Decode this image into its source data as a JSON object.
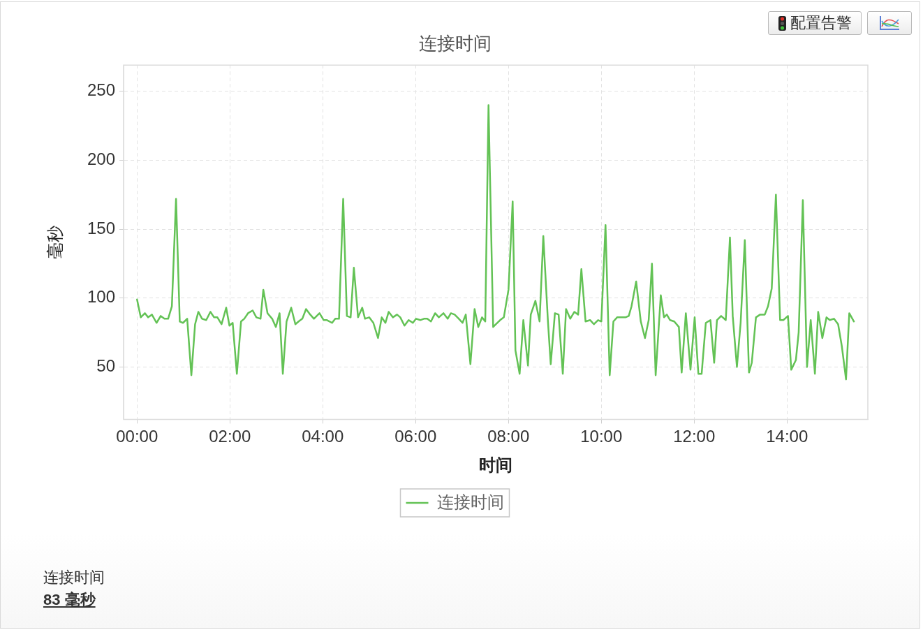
{
  "chart_data": {
    "type": "line",
    "title": "连接时间",
    "xlabel": "时间",
    "ylabel": "毫秒",
    "annotations": [
      "配置告警",
      "连接时间",
      "83 毫秒"
    ],
    "x": [
      0.0,
      0.08,
      0.17,
      0.24,
      0.32,
      0.42,
      0.51,
      0.59,
      0.67,
      0.75,
      0.84,
      0.92,
      0.99,
      1.08,
      1.17,
      1.25,
      1.32,
      1.4,
      1.49,
      1.58,
      1.66,
      1.73,
      1.82,
      1.92,
      1.99,
      2.06,
      2.15,
      2.24,
      2.31,
      2.39,
      2.49,
      2.57,
      2.66,
      2.72,
      2.81,
      2.91,
      2.99,
      3.07,
      3.14,
      3.22,
      3.32,
      3.41,
      3.48,
      3.56,
      3.64,
      3.73,
      3.81,
      3.93,
      4.02,
      4.09,
      4.2,
      4.27,
      4.35,
      4.44,
      4.52,
      4.6,
      4.67,
      4.76,
      4.85,
      4.91,
      5.0,
      5.09,
      5.19,
      5.27,
      5.35,
      5.42,
      5.51,
      5.6,
      5.67,
      5.76,
      5.85,
      5.94,
      6.01,
      6.1,
      6.18,
      6.25,
      6.33,
      6.42,
      6.5,
      6.6,
      6.69,
      6.76,
      6.84,
      6.93,
      7.01,
      7.08,
      7.18,
      7.27,
      7.35,
      7.43,
      7.5,
      7.57,
      7.67,
      7.73,
      7.82,
      7.9,
      8.0,
      8.09,
      8.15,
      8.24,
      8.32,
      8.42,
      8.48,
      8.58,
      8.67,
      8.75,
      8.85,
      8.91,
      9.0,
      9.08,
      9.17,
      9.24,
      9.33,
      9.42,
      9.5,
      9.57,
      9.66,
      9.76,
      9.84,
      9.93,
      10.0,
      10.09,
      10.18,
      10.26,
      10.34,
      10.43,
      10.52,
      10.59,
      10.65,
      10.75,
      10.85,
      10.94,
      11.02,
      11.09,
      11.17,
      11.28,
      11.35,
      11.41,
      11.48,
      11.57,
      11.67,
      11.73,
      11.82,
      11.92,
      12.01,
      12.09,
      12.16,
      12.25,
      12.35,
      12.43,
      12.49,
      12.58,
      12.68,
      12.77,
      12.83,
      12.92,
      13.0,
      13.09,
      13.18,
      13.24,
      13.33,
      13.42,
      13.52,
      13.59,
      13.67,
      13.76,
      13.85,
      13.92,
      14.02,
      14.09,
      14.19,
      14.25,
      14.34,
      14.43,
      14.51,
      14.6,
      14.67,
      14.76,
      14.85,
      14.92,
      15.01,
      15.1,
      15.18,
      15.27,
      15.34,
      15.44
    ],
    "series": [
      {
        "name": "连接时间",
        "color": "#63c255",
        "values": [
          99,
          86,
          89,
          86,
          88,
          82,
          87,
          85,
          85,
          94,
          172,
          83,
          82,
          85,
          44,
          81,
          90,
          85,
          84,
          90,
          86,
          86,
          81,
          93,
          80,
          82,
          45,
          83,
          85,
          89,
          91,
          86,
          85,
          106,
          89,
          85,
          79,
          89,
          45,
          83,
          93,
          81,
          83,
          85,
          92,
          88,
          85,
          89,
          84,
          84,
          82,
          85,
          85,
          172,
          87,
          86,
          122,
          86,
          93,
          85,
          86,
          82,
          71,
          86,
          82,
          90,
          86,
          88,
          86,
          80,
          84,
          82,
          85,
          84,
          85,
          85,
          83,
          89,
          86,
          89,
          85,
          89,
          88,
          85,
          82,
          88,
          52,
          92,
          79,
          86,
          83,
          240,
          79,
          81,
          84,
          86,
          106,
          170,
          62,
          45,
          84,
          51,
          88,
          98,
          83,
          145,
          83,
          52,
          89,
          88,
          45,
          92,
          85,
          90,
          88,
          121,
          83,
          84,
          81,
          84,
          83,
          153,
          44,
          83,
          86,
          86,
          86,
          87,
          94,
          112,
          83,
          71,
          84,
          125,
          44,
          102,
          86,
          88,
          84,
          83,
          79,
          46,
          89,
          48,
          86,
          45,
          45,
          82,
          84,
          53,
          84,
          87,
          84,
          144,
          87,
          50,
          82,
          142,
          46,
          53,
          86,
          88,
          88,
          94,
          107,
          175,
          84,
          84,
          87,
          48,
          55,
          75,
          171,
          50,
          84,
          45,
          90,
          71,
          86,
          84,
          85,
          81,
          65,
          41,
          89,
          83
        ]
      }
    ],
    "xlim": [
      -0.29,
      15.74
    ],
    "ylim": [
      12,
      269
    ],
    "xticks": [
      {
        "value": 0,
        "label": "00:00"
      },
      {
        "value": 2,
        "label": "02:00"
      },
      {
        "value": 4,
        "label": "04:00"
      },
      {
        "value": 6,
        "label": "06:00"
      },
      {
        "value": 8,
        "label": "08:00"
      },
      {
        "value": 10,
        "label": "10:00"
      },
      {
        "value": 12,
        "label": "12:00"
      },
      {
        "value": 14,
        "label": "14:00"
      }
    ],
    "yticks": [
      50,
      100,
      150,
      200,
      250
    ],
    "grid": true,
    "legend": "bottom",
    "marker": "none",
    "line_style": "solid"
  }
}
